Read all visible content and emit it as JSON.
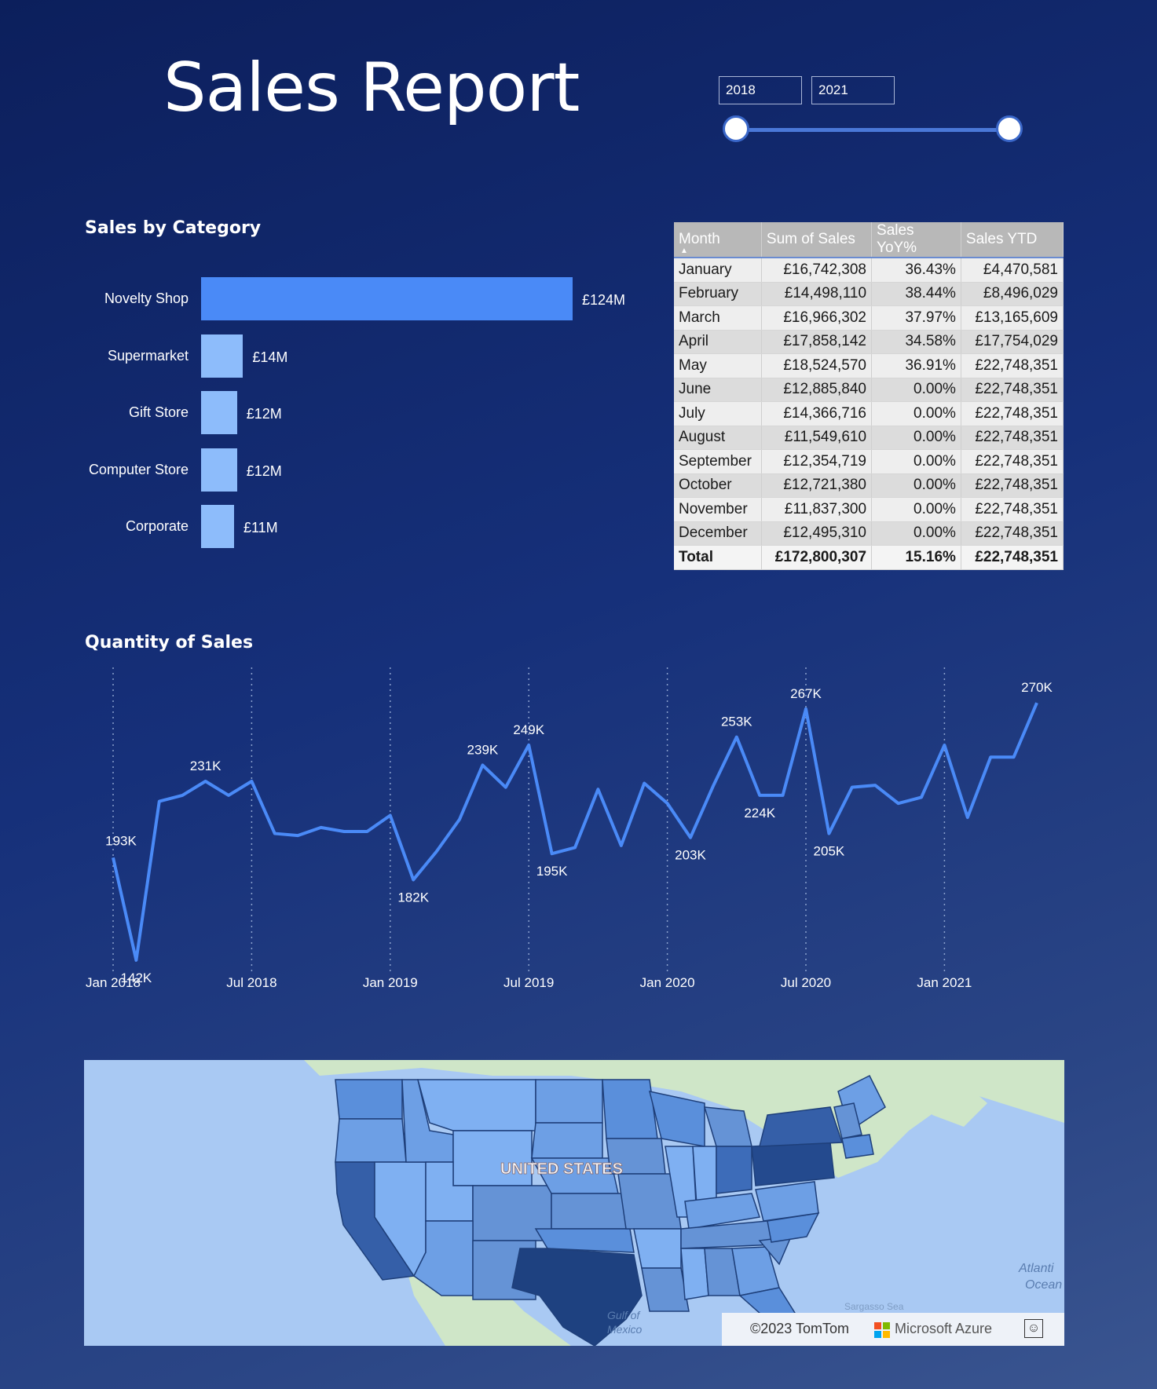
{
  "header": {
    "title": "Sales Report"
  },
  "year_slider": {
    "start": "2018",
    "end": "2021"
  },
  "category_chart": {
    "title": "Sales by Category",
    "items": [
      {
        "label": "Novelty Shop",
        "value": 124,
        "display": "£124M"
      },
      {
        "label": "Supermarket",
        "value": 14,
        "display": "£14M"
      },
      {
        "label": "Gift Store",
        "value": 12,
        "display": "£12M"
      },
      {
        "label": "Computer Store",
        "value": 12,
        "display": "£12M"
      },
      {
        "label": "Corporate",
        "value": 11,
        "display": "£11M"
      }
    ],
    "colors": {
      "highlight": "#4a8af7",
      "default": "#8dbcfb"
    }
  },
  "sales_table": {
    "headers": [
      "Month",
      "Sum of Sales",
      "Sales YoY%",
      "Sales YTD"
    ],
    "rows": [
      [
        "January",
        "£16,742,308",
        "36.43%",
        "£4,470,581"
      ],
      [
        "February",
        "£14,498,110",
        "38.44%",
        "£8,496,029"
      ],
      [
        "March",
        "£16,966,302",
        "37.97%",
        "£13,165,609"
      ],
      [
        "April",
        "£17,858,142",
        "34.58%",
        "£17,754,029"
      ],
      [
        "May",
        "£18,524,570",
        "36.91%",
        "£22,748,351"
      ],
      [
        "June",
        "£12,885,840",
        "0.00%",
        "£22,748,351"
      ],
      [
        "July",
        "£14,366,716",
        "0.00%",
        "£22,748,351"
      ],
      [
        "August",
        "£11,549,610",
        "0.00%",
        "£22,748,351"
      ],
      [
        "September",
        "£12,354,719",
        "0.00%",
        "£22,748,351"
      ],
      [
        "October",
        "£12,721,380",
        "0.00%",
        "£22,748,351"
      ],
      [
        "November",
        "£11,837,300",
        "0.00%",
        "£22,748,351"
      ],
      [
        "December",
        "£12,495,310",
        "0.00%",
        "£22,748,351"
      ]
    ],
    "total": [
      "Total",
      "£172,800,307",
      "15.16%",
      "£22,748,351"
    ]
  },
  "chart_data": {
    "type": "line",
    "title": "Quantity of Sales",
    "x": [
      "Jan 2018",
      "Feb 2018",
      "Mar 2018",
      "Apr 2018",
      "May 2018",
      "Jun 2018",
      "Jul 2018",
      "Aug 2018",
      "Sep 2018",
      "Oct 2018",
      "Nov 2018",
      "Dec 2018",
      "Jan 2019",
      "Feb 2019",
      "Mar 2019",
      "Apr 2019",
      "May 2019",
      "Jun 2019",
      "Jul 2019",
      "Aug 2019",
      "Sep 2019",
      "Oct 2019",
      "Nov 2019",
      "Dec 2019",
      "Jan 2020",
      "Feb 2020",
      "Mar 2020",
      "Apr 2020",
      "May 2020",
      "Jun 2020",
      "Jul 2020",
      "Aug 2020",
      "Sep 2020",
      "Oct 2020",
      "Nov 2020",
      "Dec 2020",
      "Jan 2021",
      "Feb 2021",
      "Mar 2021",
      "Apr 2021",
      "May 2021"
    ],
    "series": [
      {
        "values": [
          193,
          142,
          221,
          224,
          231,
          224,
          231,
          205,
          204,
          208,
          206,
          206,
          214,
          182,
          196,
          212,
          239,
          228,
          249,
          195,
          198,
          227,
          199,
          230,
          220,
          203,
          229,
          253,
          224,
          224,
          267,
          205,
          228,
          229,
          220,
          223,
          249,
          213,
          243,
          243,
          270
        ]
      }
    ],
    "data_labels": [
      {
        "x": "Jan 2018",
        "text": "193K"
      },
      {
        "x": "Feb 2018",
        "text": "142K"
      },
      {
        "x": "May 2018",
        "text": "231K"
      },
      {
        "x": "Feb 2019",
        "text": "182K"
      },
      {
        "x": "May 2019",
        "text": "239K"
      },
      {
        "x": "Jul 2019",
        "text": "249K"
      },
      {
        "x": "Aug 2019",
        "text": "195K"
      },
      {
        "x": "Feb 2020",
        "text": "203K"
      },
      {
        "x": "Apr 2020",
        "text": "253K"
      },
      {
        "x": "May 2020",
        "text": "224K"
      },
      {
        "x": "Jul 2020",
        "text": "267K"
      },
      {
        "x": "Aug 2020",
        "text": "205K"
      },
      {
        "x": "May 2021",
        "text": "270K"
      }
    ],
    "x_ticks": [
      "Jan 2018",
      "Jul 2018",
      "Jan 2019",
      "Jul 2019",
      "Jan 2020",
      "Jul 2020",
      "Jan 2021"
    ],
    "ylim": [
      140,
      272
    ],
    "grid": "vertical-dotted",
    "color": "#4a8af7"
  },
  "map": {
    "country_label": "UNITED STATES",
    "water_labels": [
      "Gulf of Mexico",
      "Atlantic Ocean",
      "Sargasso Sea"
    ],
    "credit": "©2023 TomTom",
    "provider": "Microsoft Azure",
    "feedback_icon": "smiley-icon"
  }
}
